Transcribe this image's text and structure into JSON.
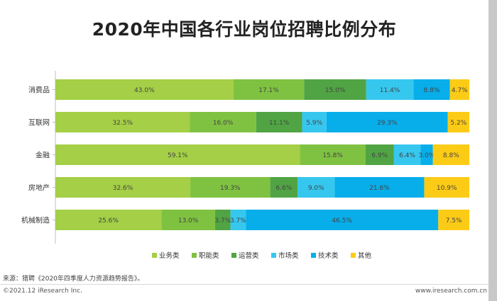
{
  "title": "2020年中国各行业岗位招聘比例分布",
  "source": "来源：猎聘《2020年四季度人力资源趋势报告》。",
  "footer": {
    "copyright": "©2021.12 iResearch Inc.",
    "website": "www.iresearch.com.cn"
  },
  "chart_data": {
    "type": "bar",
    "orientation": "horizontal",
    "stacked": true,
    "percent_stacked": true,
    "categories": [
      "消费品",
      "互联网",
      "金融",
      "房地产",
      "机械制造"
    ],
    "series": [
      {
        "name": "业务类",
        "color": "#a4cf46",
        "values": [
          43.0,
          32.5,
          59.1,
          32.6,
          25.6
        ]
      },
      {
        "name": "职能类",
        "color": "#7fc241",
        "values": [
          17.1,
          16.0,
          15.8,
          19.3,
          13.0
        ]
      },
      {
        "name": "运营类",
        "color": "#51a444",
        "values": [
          15.0,
          11.1,
          6.9,
          6.6,
          3.7
        ]
      },
      {
        "name": "市场类",
        "color": "#36c7ef",
        "values": [
          11.4,
          5.9,
          6.4,
          9.0,
          3.7
        ]
      },
      {
        "name": "技术类",
        "color": "#07aeea",
        "values": [
          8.8,
          29.3,
          3.0,
          21.6,
          46.5
        ]
      },
      {
        "name": "其他",
        "color": "#fccb16",
        "values": [
          4.7,
          5.2,
          8.8,
          10.9,
          7.5
        ]
      }
    ],
    "value_labels": [
      [
        "43.0%",
        "17.1%",
        "15.0%",
        "11.4%",
        "8.8%",
        "4.7%"
      ],
      [
        "32.5%",
        "16.0%",
        "11.1%",
        "5.9%",
        "29.3%",
        "5.2%"
      ],
      [
        "59.1%",
        "15.8%",
        "6.9%",
        "6.4%",
        "3.0%",
        "8.8%"
      ],
      [
        "32.6%",
        "19.3%",
        "6.6%",
        "9.0%",
        "21.6%",
        "10.9%"
      ],
      [
        "25.6%",
        "13.0%",
        "3.7%",
        "3.7%",
        "46.5%",
        "7.5%"
      ]
    ],
    "legend_position": "bottom",
    "grid": false
  }
}
